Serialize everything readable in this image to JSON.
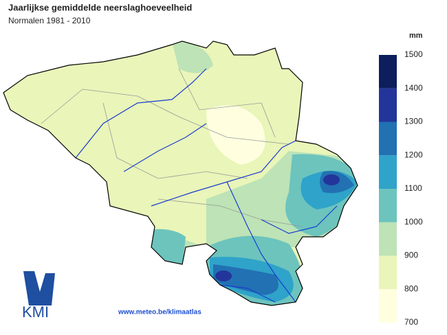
{
  "header": {
    "title": "Jaarlijkse gemiddelde neerslaghoeveelheid",
    "subtitle": "Normalen 1981 - 2010"
  },
  "legend": {
    "unit": "mm",
    "ticks": [
      700,
      800,
      900,
      1000,
      1100,
      1200,
      1300,
      1400,
      1500
    ],
    "colors": [
      "#ffffe0",
      "#e9f5b9",
      "#bde3b6",
      "#6cc4bd",
      "#2fa3c9",
      "#2271b3",
      "#23359a",
      "#0c1f5c"
    ]
  },
  "logo": {
    "text": "KMI"
  },
  "footer": {
    "url": "www.meteo.be/klimaatlas"
  }
}
